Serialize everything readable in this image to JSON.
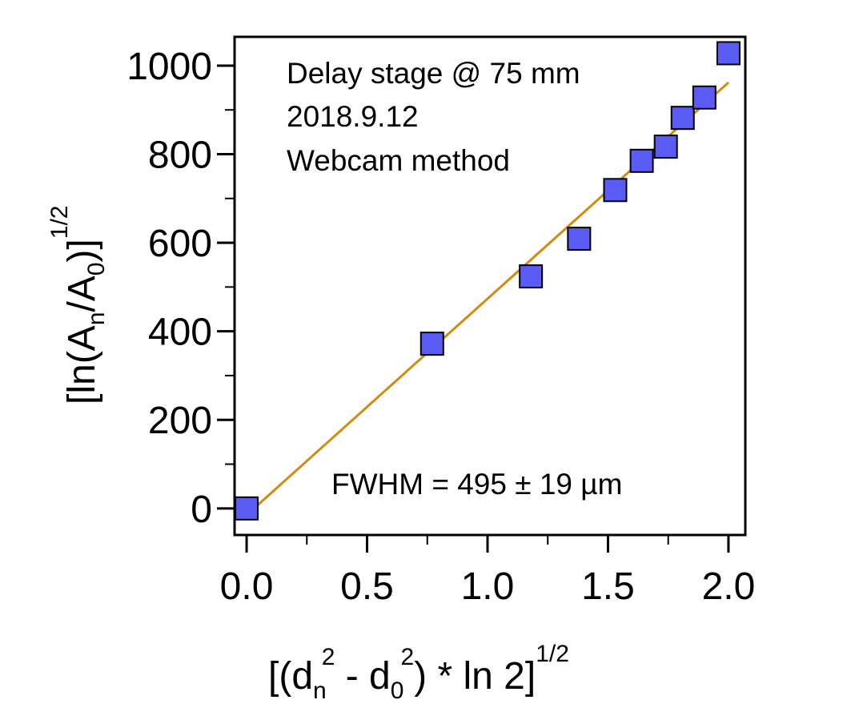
{
  "chart_data": {
    "type": "scatter",
    "x": [
      0.0,
      0.77,
      1.18,
      1.38,
      1.53,
      1.64,
      1.74,
      1.81,
      1.9,
      2.0
    ],
    "y": [
      0,
      372,
      524,
      609,
      719,
      785,
      817,
      882,
      928,
      1028
    ],
    "fit_line": {
      "x": [
        0.0,
        2.0
      ],
      "y": [
        -15,
        962
      ]
    },
    "xlim": [
      -0.05,
      2.07
    ],
    "ylim": [
      -60,
      1065
    ],
    "x_ticks": [
      0.0,
      0.5,
      1.0,
      1.5,
      2.0
    ],
    "x_tick_labels": [
      "0.0",
      "0.5",
      "1.0",
      "1.5",
      "2.0"
    ],
    "y_ticks": [
      0,
      200,
      400,
      600,
      800,
      1000
    ],
    "y_tick_labels": [
      "0",
      "200",
      "400",
      "600",
      "800",
      "1000"
    ],
    "xlabel": {
      "p1": "[(d",
      "sub1": "n",
      "sup1": "2",
      "p2": " - d",
      "sub2": "0",
      "sup2": "2",
      "p3": ") * ln 2]",
      "sup3": "1/2"
    },
    "ylabel": {
      "p1": "[ln(A",
      "sub1": "n",
      "p2": "/A",
      "sub2": "0",
      "p3": ")]",
      "sup": "1/2"
    },
    "annotations": {
      "line1": "Delay stage @ 75 mm",
      "line2": "2018.9.12",
      "line3": "Webcam method",
      "fwhm": "FWHM = 495 ± 19 µm"
    },
    "grid": false,
    "colors": {
      "marker_fill": "#5b5bf5",
      "marker_edge": "#000000",
      "fit_line": "#d08c10",
      "axes": "#000000"
    }
  }
}
